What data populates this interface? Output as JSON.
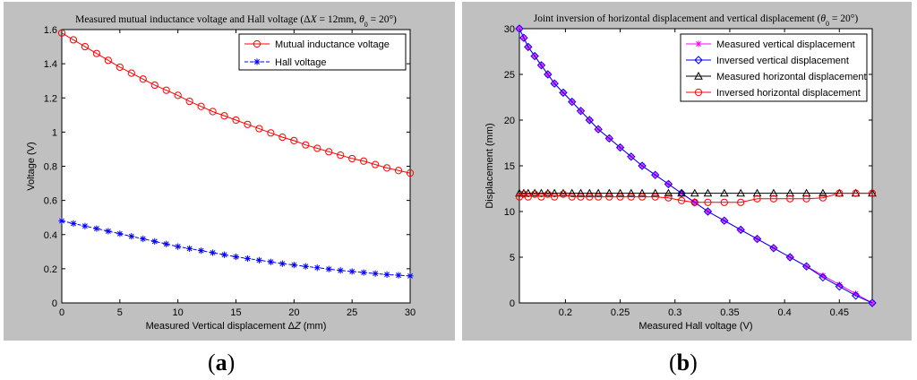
{
  "chart_data": [
    {
      "type": "line",
      "title": "Measured mutual inductance voltage and Hall voltage (ΔX = 12mm, θ0 = 20°)",
      "title_parts": [
        "Measured mutual inductance voltage and Hall voltage (Δ",
        "X",
        " = 12mm, ",
        "θ",
        "0",
        " = 20°)"
      ],
      "xlabel": "Measured Vertical displacement ΔZ (mm)",
      "xlabel_parts": [
        "Measured Vertical displacement Δ",
        "Z",
        " (mm)"
      ],
      "ylabel": "Voltage (V)",
      "xlim": [
        0,
        30
      ],
      "ylim": [
        0,
        1.6
      ],
      "xticks": [
        0,
        5,
        10,
        15,
        20,
        25,
        30
      ],
      "xtick_labels": [
        "0",
        "5",
        "10",
        "15",
        "20",
        "25",
        "30"
      ],
      "yticks": [
        0,
        0.2,
        0.4,
        0.6,
        0.8,
        1,
        1.2,
        1.4,
        1.6
      ],
      "ytick_labels": [
        "0",
        "0.2",
        "0.4",
        "0.6",
        "0.8",
        "1",
        "1.2",
        "1.4",
        "1.6"
      ],
      "legend": "top-right",
      "x": [
        0,
        1,
        2,
        3,
        4,
        5,
        6,
        7,
        8,
        9,
        10,
        11,
        12,
        13,
        14,
        15,
        16,
        17,
        18,
        19,
        20,
        21,
        22,
        23,
        24,
        25,
        26,
        27,
        28,
        29,
        30
      ],
      "series": [
        {
          "name": "Mutual inductance voltage",
          "color": "#ff0000",
          "marker": "circle",
          "values": [
            1.58,
            1.54,
            1.5,
            1.46,
            1.42,
            1.38,
            1.345,
            1.31,
            1.275,
            1.245,
            1.215,
            1.18,
            1.15,
            1.12,
            1.095,
            1.07,
            1.045,
            1.02,
            0.995,
            0.97,
            0.95,
            0.925,
            0.905,
            0.885,
            0.865,
            0.845,
            0.83,
            0.81,
            0.79,
            0.775,
            0.76
          ]
        },
        {
          "name": "Hall voltage",
          "color": "#0000ff",
          "marker": "star",
          "dash": true,
          "values": [
            0.48,
            0.465,
            0.45,
            0.435,
            0.42,
            0.405,
            0.39,
            0.375,
            0.36,
            0.345,
            0.33,
            0.318,
            0.306,
            0.294,
            0.282,
            0.27,
            0.26,
            0.25,
            0.24,
            0.23,
            0.222,
            0.214,
            0.206,
            0.198,
            0.19,
            0.184,
            0.178,
            0.172,
            0.166,
            0.162,
            0.158
          ]
        }
      ]
    },
    {
      "type": "line",
      "title": "Joint inversion of horizontal displacement and vertical displacement (θ0 = 20°)",
      "title_parts": [
        "Joint inversion of horizontal displacement and vertical displacement (",
        "θ",
        "0",
        " = 20°)"
      ],
      "xlabel": "Measured Hall voltage (V)",
      "ylabel": "Displacement (mm)",
      "xlim": [
        0.158,
        0.48
      ],
      "ylim": [
        0,
        30
      ],
      "xticks": [
        0.2,
        0.25,
        0.3,
        0.35,
        0.4,
        0.45
      ],
      "xtick_labels": [
        "0.2",
        "0.25",
        "0.3",
        "0.35",
        "0.4",
        "0.45"
      ],
      "yticks": [
        0,
        5,
        10,
        15,
        20,
        25,
        30
      ],
      "ytick_labels": [
        "0",
        "5",
        "10",
        "15",
        "20",
        "25",
        "30"
      ],
      "legend": "top-right",
      "x": [
        0.158,
        0.162,
        0.166,
        0.172,
        0.178,
        0.184,
        0.19,
        0.198,
        0.206,
        0.214,
        0.222,
        0.23,
        0.24,
        0.25,
        0.26,
        0.27,
        0.282,
        0.294,
        0.306,
        0.318,
        0.33,
        0.345,
        0.36,
        0.375,
        0.39,
        0.405,
        0.42,
        0.435,
        0.45,
        0.465,
        0.48
      ],
      "series": [
        {
          "name": "Measured vertical displacement",
          "color": "#ff00ff",
          "marker": "star",
          "values": [
            30,
            29,
            28,
            27,
            26,
            25,
            24,
            23,
            22,
            21,
            20,
            19,
            18,
            17,
            16,
            15,
            14,
            13,
            12,
            11,
            10,
            9,
            8,
            7,
            6,
            5,
            4,
            3,
            2,
            1,
            0
          ]
        },
        {
          "name": "Inversed vertical displacement",
          "color": "#0000ff",
          "marker": "diamond",
          "values": [
            30,
            29,
            28,
            27,
            26,
            25,
            24,
            23,
            22,
            21,
            20,
            19,
            18,
            17,
            16,
            15,
            14,
            13,
            12,
            11,
            10,
            9,
            8,
            7,
            6,
            5,
            4,
            2.8,
            1.8,
            0.8,
            0
          ]
        },
        {
          "name": "Measured horizontal displacement",
          "color": "#000000",
          "marker": "triangle",
          "values": [
            12,
            12,
            12,
            12,
            12,
            12,
            12,
            12,
            12,
            12,
            12,
            12,
            12,
            12,
            12,
            12,
            12,
            12,
            12,
            12,
            12,
            12,
            12,
            12,
            12,
            12,
            12,
            12,
            12,
            12,
            12
          ]
        },
        {
          "name": "Inversed horizontal displacement",
          "color": "#ff0000",
          "marker": "circle",
          "values": [
            11.6,
            11.9,
            11.6,
            11.9,
            11.6,
            11.9,
            11.6,
            11.9,
            11.6,
            11.6,
            11.6,
            11.6,
            11.6,
            11.6,
            11.6,
            11.6,
            11.6,
            11.5,
            11.2,
            11,
            11,
            11,
            11,
            11.4,
            11.4,
            11.4,
            11.4,
            11.5,
            12,
            12,
            12
          ]
        }
      ]
    }
  ],
  "labels": {
    "a": "a",
    "b": "b"
  }
}
